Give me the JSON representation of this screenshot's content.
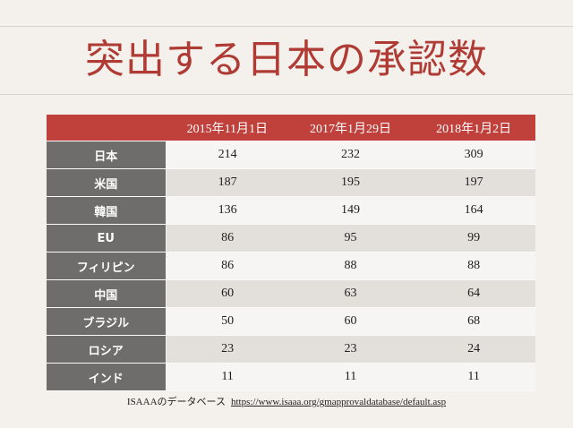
{
  "slide": {
    "title": "突出する日本の承認数"
  },
  "table": {
    "columns": [
      "",
      "2015年11月1日",
      "2017年1月29日",
      "2018年1月2日"
    ],
    "rows": [
      {
        "label": "日本",
        "values": [
          "214",
          "232",
          "309"
        ]
      },
      {
        "label": "米国",
        "values": [
          "187",
          "195",
          "197"
        ]
      },
      {
        "label": "韓国",
        "values": [
          "136",
          "149",
          "164"
        ]
      },
      {
        "label": "EU",
        "values": [
          "86",
          "95",
          "99"
        ]
      },
      {
        "label": "フィリピン",
        "values": [
          "86",
          "88",
          "88"
        ]
      },
      {
        "label": "中国",
        "values": [
          "60",
          "63",
          "64"
        ]
      },
      {
        "label": "ブラジル",
        "values": [
          "50",
          "60",
          "68"
        ]
      },
      {
        "label": "ロシア",
        "values": [
          "23",
          "23",
          "24"
        ]
      },
      {
        "label": "インド",
        "values": [
          "11",
          "11",
          "11"
        ]
      }
    ]
  },
  "source": {
    "label": "ISAAAのデータベース",
    "url": "https://www.isaaa.org/gmapprovaldatabase/default.asp"
  },
  "colors": {
    "accent": "#b03a34",
    "header_bg": "#c0413c",
    "row_label_bg": "#6f6d6b",
    "background": "#f4f1ec"
  }
}
